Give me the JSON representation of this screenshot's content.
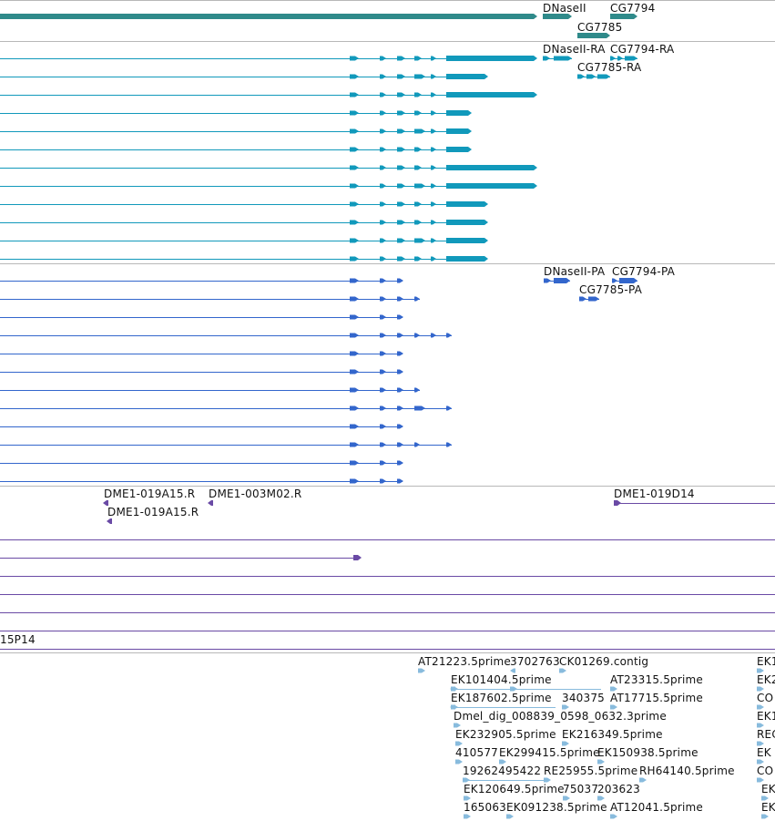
{
  "colors": {
    "gene": "#2f8a8a",
    "transcript": "#1199bb",
    "cds": "#3366cc",
    "clone": "#6a4aa5",
    "est": "#88bbdd",
    "divider": "#b8b8b8"
  },
  "tracks": {
    "genes": {
      "labels": [
        "DNaseII",
        "CG7794",
        "CG7785"
      ]
    },
    "transcripts": {
      "labels": [
        "DNaseII-RA",
        "CG7794-RA",
        "CG7785-RA"
      ]
    },
    "proteins": {
      "labels": [
        "DNaseII-PA",
        "CG7794-PA",
        "CG7785-PA"
      ]
    },
    "clones": {
      "labels": [
        "DME1-019A15.R",
        "DME1-003M02.R",
        "DME1-019A15.R",
        "DME1-019D14",
        "15P14"
      ]
    },
    "ests": {
      "labels": [
        "AT21223.5prime",
        "3702763",
        "CK01269.contig",
        "EK1",
        "EK101404.5prime",
        "AT23315.5prime",
        "EK2",
        "EK187602.5prime",
        "340375",
        "AT17715.5prime",
        "CO",
        "Dmel_dig_008839_0598_0632.3prime",
        "EK1",
        "EK232905.5prime",
        "EK216349.5prime",
        "REC",
        "410577",
        "EK299415.5prime",
        "EK150938.5prime",
        "EK",
        "19262495422",
        "RE25955.5prime",
        "RH64140.5prime",
        "CO",
        "EK120649.5prime",
        "75037",
        "203623",
        "EK",
        "165063",
        "EK091238.5prime",
        "AT12041.5prime",
        "EK"
      ]
    }
  }
}
